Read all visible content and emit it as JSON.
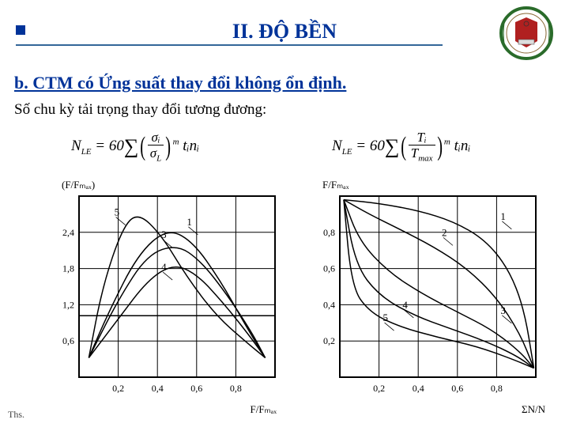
{
  "header": {
    "title": "II. ĐỘ BỀN",
    "accent_color": "#003399"
  },
  "subtitle": "b. CTM có Ứng suất thay đổi không ổn định.",
  "subtext": "Số chu kỳ tải trọng thay đổi tương đương:",
  "formula_left": {
    "lhs": "N",
    "lhs_sub": "LE",
    "coeff": "= 60",
    "num": "σᵢ",
    "den": "σ",
    "den_sub": "L",
    "exp": "m",
    "tail": "tᵢnᵢ"
  },
  "formula_right": {
    "lhs": "N",
    "lhs_sub": "LE",
    "coeff": "= 60",
    "num": "Tᵢ",
    "den": "T",
    "den_sub": "max",
    "exp": "m",
    "tail": "tᵢnᵢ"
  },
  "chart_left": {
    "type": "line",
    "ylabel": "(F/Fₘₐₓ)",
    "xlabel": "F/Fₘₐₓ",
    "xlim": [
      0,
      1
    ],
    "ylim": [
      0,
      2.8
    ],
    "xticks": [
      "0,2",
      "0,4",
      "0,6",
      "0,8"
    ],
    "yticks": [
      "0,6",
      "1,2",
      "1,8",
      "2,4"
    ],
    "grid_color": "#000000",
    "background_color": "#ffffff",
    "line_color": "#000000",
    "line_width": 1.5,
    "label_fontsize": 12,
    "series_labels": {
      "1": "1",
      "3": "3",
      "4": "4",
      "5": "5"
    },
    "curves": {
      "1": [
        [
          0.05,
          0.3
        ],
        [
          0.15,
          1.0
        ],
        [
          0.3,
          1.9
        ],
        [
          0.45,
          2.3
        ],
        [
          0.58,
          2.1
        ],
        [
          0.72,
          1.5
        ],
        [
          0.85,
          0.8
        ],
        [
          0.95,
          0.3
        ]
      ],
      "3": [
        [
          0.05,
          0.3
        ],
        [
          0.2,
          1.2
        ],
        [
          0.35,
          1.9
        ],
        [
          0.5,
          2.05
        ],
        [
          0.62,
          1.8
        ],
        [
          0.75,
          1.3
        ],
        [
          0.88,
          0.7
        ],
        [
          0.95,
          0.3
        ]
      ],
      "4": [
        [
          0.05,
          0.3
        ],
        [
          0.2,
          0.9
        ],
        [
          0.35,
          1.5
        ],
        [
          0.48,
          1.75
        ],
        [
          0.6,
          1.6
        ],
        [
          0.75,
          1.1
        ],
        [
          0.88,
          0.6
        ],
        [
          0.95,
          0.3
        ]
      ],
      "5": [
        [
          0.05,
          0.3
        ],
        [
          0.12,
          1.4
        ],
        [
          0.22,
          2.3
        ],
        [
          0.3,
          2.55
        ],
        [
          0.42,
          2.2
        ],
        [
          0.55,
          1.55
        ],
        [
          0.7,
          0.95
        ],
        [
          0.85,
          0.55
        ],
        [
          0.95,
          0.3
        ]
      ]
    },
    "hline_y": 0.95
  },
  "chart_right": {
    "type": "line",
    "ylabel": "F/Fₘₐₓ",
    "xlabel": "ΣN/N",
    "xlim": [
      0,
      1
    ],
    "ylim": [
      0,
      1
    ],
    "xticks": [
      "0,2",
      "0,4",
      "0,6",
      "0,8"
    ],
    "yticks": [
      "0,2",
      "0,4",
      "0,6",
      "0,8"
    ],
    "grid_color": "#000000",
    "background_color": "#ffffff",
    "line_color": "#000000",
    "line_width": 1.5,
    "label_fontsize": 12,
    "series_labels": {
      "1": "1",
      "2": "2",
      "3": "3",
      "4": "4",
      "5": "5"
    },
    "curves": {
      "1": [
        [
          0.02,
          0.98
        ],
        [
          0.2,
          0.96
        ],
        [
          0.4,
          0.92
        ],
        [
          0.58,
          0.86
        ],
        [
          0.74,
          0.76
        ],
        [
          0.86,
          0.6
        ],
        [
          0.94,
          0.38
        ],
        [
          0.99,
          0.05
        ]
      ],
      "2": [
        [
          0.02,
          0.98
        ],
        [
          0.15,
          0.9
        ],
        [
          0.3,
          0.82
        ],
        [
          0.48,
          0.72
        ],
        [
          0.65,
          0.6
        ],
        [
          0.8,
          0.44
        ],
        [
          0.92,
          0.24
        ],
        [
          0.99,
          0.05
        ]
      ],
      "3": [
        [
          0.02,
          0.98
        ],
        [
          0.1,
          0.75
        ],
        [
          0.25,
          0.58
        ],
        [
          0.42,
          0.46
        ],
        [
          0.6,
          0.36
        ],
        [
          0.78,
          0.26
        ],
        [
          0.92,
          0.14
        ],
        [
          0.99,
          0.05
        ]
      ],
      "4": [
        [
          0.02,
          0.98
        ],
        [
          0.08,
          0.62
        ],
        [
          0.2,
          0.45
        ],
        [
          0.38,
          0.34
        ],
        [
          0.56,
          0.27
        ],
        [
          0.74,
          0.2
        ],
        [
          0.9,
          0.12
        ],
        [
          0.99,
          0.05
        ]
      ],
      "5": [
        [
          0.02,
          0.98
        ],
        [
          0.06,
          0.5
        ],
        [
          0.15,
          0.36
        ],
        [
          0.3,
          0.28
        ],
        [
          0.5,
          0.22
        ],
        [
          0.7,
          0.17
        ],
        [
          0.88,
          0.1
        ],
        [
          0.99,
          0.05
        ]
      ]
    }
  },
  "footer": "Ths."
}
